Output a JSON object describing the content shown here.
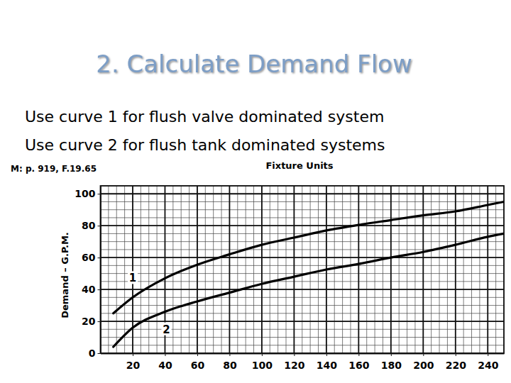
{
  "slide": {
    "title": "2. Calculate Demand Flow",
    "body": [
      "Use curve 1 for flush valve dominated system",
      "Use curve 2 for flush tank dominated systems"
    ],
    "reference": "M: p. 919, F.19.65"
  },
  "chart_data": {
    "type": "line",
    "title": "Fixture Units",
    "y_label": "Demand – G.P.M.",
    "x": [
      8,
      20,
      40,
      60,
      80,
      100,
      120,
      140,
      160,
      180,
      200,
      220,
      240,
      250
    ],
    "series": [
      {
        "name": "1",
        "color": "#000000",
        "values": [
          25,
          35,
          47,
          55.5,
          62,
          68,
          72.5,
          77,
          80.5,
          83.5,
          86.5,
          89,
          93,
          95
        ]
      },
      {
        "name": "2",
        "color": "#000000",
        "values": [
          4,
          16,
          26,
          32.5,
          38,
          43.5,
          48,
          52.5,
          56,
          60,
          63.5,
          68,
          73,
          75
        ]
      }
    ],
    "xlim": [
      0,
      250
    ],
    "ylim": [
      0,
      105
    ],
    "xticks": [
      20,
      40,
      60,
      80,
      100,
      120,
      140,
      160,
      180,
      200,
      220,
      240
    ],
    "yticks": [
      0,
      20,
      40,
      60,
      80,
      100
    ],
    "grid": true
  }
}
